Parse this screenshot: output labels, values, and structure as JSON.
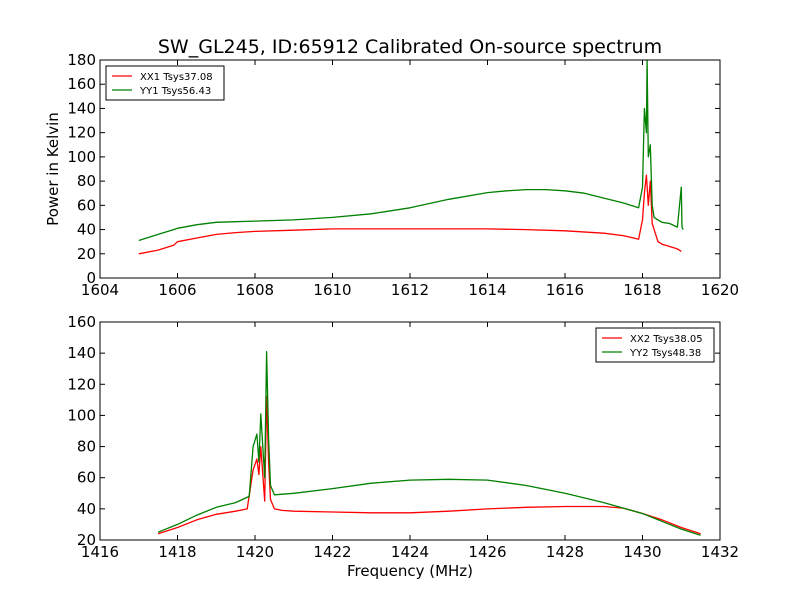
{
  "title": "SW_GL245, ID:65912 Calibrated On-source spectrum",
  "chart_data": [
    {
      "type": "line",
      "ylabel": "Power in Kelvin",
      "xlabel": "",
      "xlim": [
        1604,
        1620
      ],
      "ylim": [
        0,
        180
      ],
      "xticks": [
        1604,
        1606,
        1608,
        1610,
        1612,
        1614,
        1616,
        1618,
        1620
      ],
      "yticks": [
        0,
        20,
        40,
        60,
        80,
        100,
        120,
        140,
        160,
        180
      ],
      "legend_position": "upper-left",
      "series": [
        {
          "name": "XX1 Tsys37.08",
          "color": "#ff0000",
          "x": [
            1605.0,
            1605.5,
            1605.9,
            1606.0,
            1606.5,
            1607.0,
            1607.5,
            1608.0,
            1609.0,
            1610.0,
            1611.0,
            1612.0,
            1613.0,
            1614.0,
            1615.0,
            1616.0,
            1617.0,
            1617.5,
            1617.9,
            1618.0,
            1618.05,
            1618.1,
            1618.15,
            1618.2,
            1618.25,
            1618.3,
            1618.4,
            1618.5,
            1618.7,
            1618.9,
            1619.0
          ],
          "y": [
            20,
            23,
            27,
            30,
            33,
            36,
            37.5,
            38.5,
            39.5,
            40.5,
            40.5,
            40.5,
            40.5,
            40.5,
            40,
            39,
            37,
            35,
            32,
            48,
            70,
            85,
            60,
            80,
            45,
            40,
            30,
            28,
            26,
            24,
            22
          ]
        },
        {
          "name": "YY1 Tsys56.43",
          "color": "#008000",
          "x": [
            1605.0,
            1605.5,
            1605.9,
            1606.0,
            1606.5,
            1607.0,
            1607.5,
            1608.0,
            1609.0,
            1610.0,
            1611.0,
            1612.0,
            1613.0,
            1614.0,
            1614.5,
            1615.0,
            1615.5,
            1616.0,
            1616.5,
            1617.0,
            1617.5,
            1617.9,
            1618.0,
            1618.05,
            1618.1,
            1618.12,
            1618.15,
            1618.2,
            1618.25,
            1618.3,
            1618.4,
            1618.5,
            1618.7,
            1618.9,
            1619.0,
            1619.02,
            1619.05
          ],
          "y": [
            31,
            36,
            40,
            41,
            44,
            46,
            46.5,
            47,
            48,
            50,
            53,
            58,
            65,
            70.5,
            72,
            73,
            73,
            72,
            70,
            66,
            62,
            58,
            75,
            140,
            120,
            180,
            100,
            110,
            60,
            50,
            48,
            46,
            45,
            42,
            75,
            42,
            40
          ]
        }
      ]
    },
    {
      "type": "line",
      "ylabel": "",
      "xlabel": "Frequency (MHz)",
      "xlim": [
        1416,
        1432
      ],
      "ylim": [
        20,
        160
      ],
      "xticks": [
        1416,
        1418,
        1420,
        1422,
        1424,
        1426,
        1428,
        1430,
        1432
      ],
      "yticks": [
        20,
        40,
        60,
        80,
        100,
        120,
        140,
        160
      ],
      "legend_position": "upper-right",
      "series": [
        {
          "name": "XX2 Tsys38.05",
          "color": "#ff0000",
          "x": [
            1417.5,
            1418.0,
            1418.5,
            1419.0,
            1419.5,
            1419.8,
            1419.95,
            1420.05,
            1420.1,
            1420.15,
            1420.25,
            1420.3,
            1420.35,
            1420.4,
            1420.5,
            1420.7,
            1421.0,
            1422.0,
            1423.0,
            1424.0,
            1425.0,
            1426.0,
            1427.0,
            1428.0,
            1429.0,
            1429.5,
            1430.0,
            1430.5,
            1431.0,
            1431.5
          ],
          "y": [
            24,
            28,
            33,
            36.5,
            38.5,
            40,
            65,
            72,
            62,
            80,
            45,
            112,
            70,
            46,
            40,
            39,
            38.5,
            38,
            37.5,
            37.5,
            38.5,
            40,
            41,
            41.5,
            41.5,
            40.5,
            37,
            33,
            28,
            24
          ]
        },
        {
          "name": "YY2 Tsys48.38",
          "color": "#008000",
          "x": [
            1417.5,
            1418.0,
            1418.5,
            1419.0,
            1419.5,
            1419.85,
            1419.95,
            1420.05,
            1420.1,
            1420.15,
            1420.25,
            1420.3,
            1420.35,
            1420.4,
            1420.5,
            1421.0,
            1422.0,
            1423.0,
            1424.0,
            1425.0,
            1426.0,
            1427.0,
            1428.0,
            1429.0,
            1430.0,
            1430.5,
            1431.0,
            1431.5
          ],
          "y": [
            25,
            30,
            36,
            41,
            44,
            48,
            80,
            88,
            70,
            101,
            60,
            141,
            85,
            55,
            49,
            50,
            53,
            56.5,
            58.5,
            59,
            58.5,
            55,
            50,
            44,
            37,
            32,
            27,
            23
          ]
        }
      ]
    }
  ]
}
